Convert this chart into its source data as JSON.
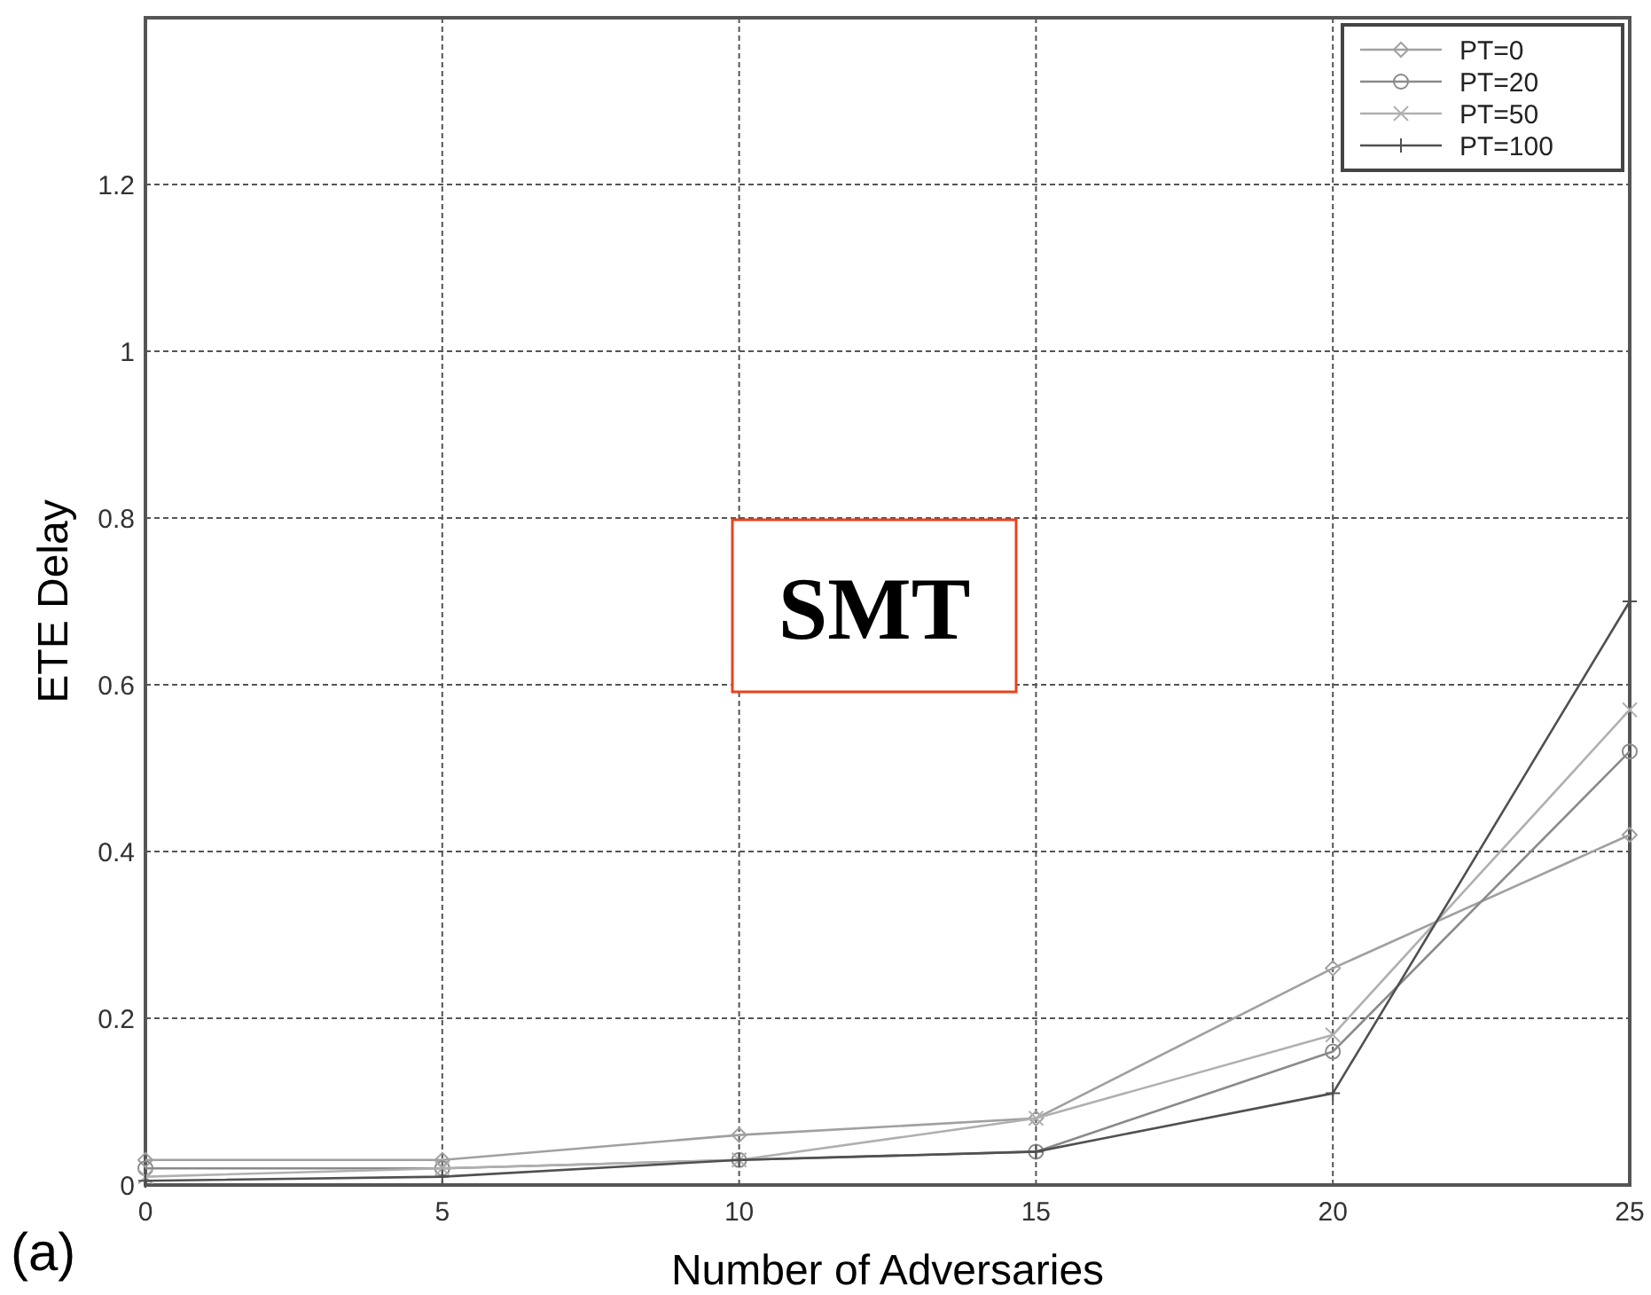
{
  "chart_data": {
    "type": "line",
    "xlabel": "Number of Adversaries",
    "ylabel": "ETE Delay",
    "annotations": [
      "SMT",
      "(a)"
    ],
    "x": [
      0,
      5,
      10,
      15,
      20,
      25
    ],
    "xlim": [
      0,
      25
    ],
    "xticks": [
      0,
      5,
      10,
      15,
      20,
      25
    ],
    "ylim": [
      0,
      1.4
    ],
    "yticks": [
      0,
      0.2,
      0.4,
      0.6,
      0.8,
      1,
      1.2
    ],
    "grid": true,
    "legend": "top right",
    "line_style": "solid",
    "series": [
      {
        "name": "PT=0",
        "color": "#a0a0a0",
        "marker": "diamond",
        "values": [
          0.03,
          0.03,
          0.06,
          0.08,
          0.26,
          0.42
        ]
      },
      {
        "name": "PT=20",
        "color": "#8a8a8a",
        "marker": "circle",
        "values": [
          0.02,
          0.02,
          0.03,
          0.04,
          0.16,
          0.52
        ]
      },
      {
        "name": "PT=50",
        "color": "#b0b0b0",
        "marker": "cross",
        "values": [
          0.01,
          0.02,
          0.03,
          0.08,
          0.18,
          0.57
        ]
      },
      {
        "name": "PT=100",
        "color": "#505050",
        "marker": "plus",
        "values": [
          0.005,
          0.01,
          0.03,
          0.04,
          0.11,
          0.7
        ]
      }
    ]
  }
}
